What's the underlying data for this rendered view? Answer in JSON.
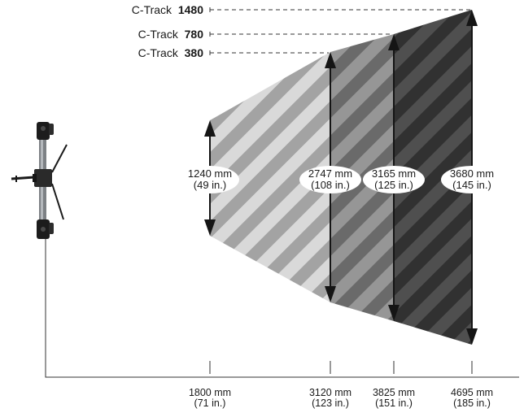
{
  "tracks": [
    {
      "name_prefix": "C-Track",
      "name_number": "380"
    },
    {
      "name_prefix": "C-Track",
      "name_number": "780"
    },
    {
      "name_prefix": "C-Track",
      "name_number": "1480"
    }
  ],
  "measurements": [
    {
      "mm": "1240 mm",
      "inches": "(49 in.)"
    },
    {
      "mm": "2747 mm",
      "inches": "(108 in.)"
    },
    {
      "mm": "3165 mm",
      "inches": "(125 in.)"
    },
    {
      "mm": "3680 mm",
      "inches": "(145 in.)"
    }
  ],
  "distances": [
    {
      "mm": "1800 mm",
      "inches": "(71 in.)"
    },
    {
      "mm": "3120 mm",
      "inches": "(123 in.)"
    },
    {
      "mm": "3825 mm",
      "inches": "(151 in.)"
    },
    {
      "mm": "4695 mm",
      "inches": "(185 in.)"
    }
  ],
  "colors": {
    "zone1_dark": "#a3a3a3",
    "zone1_light": "#d9d9d9",
    "zone2_dark": "#6a6a6a",
    "zone2_light": "#969696",
    "zone3_dark": "#313131",
    "zone3_light": "#4f4f4f",
    "arrow": "#151515",
    "line": "#333333"
  },
  "icons": {
    "device": "c-track-tracker-icon"
  }
}
